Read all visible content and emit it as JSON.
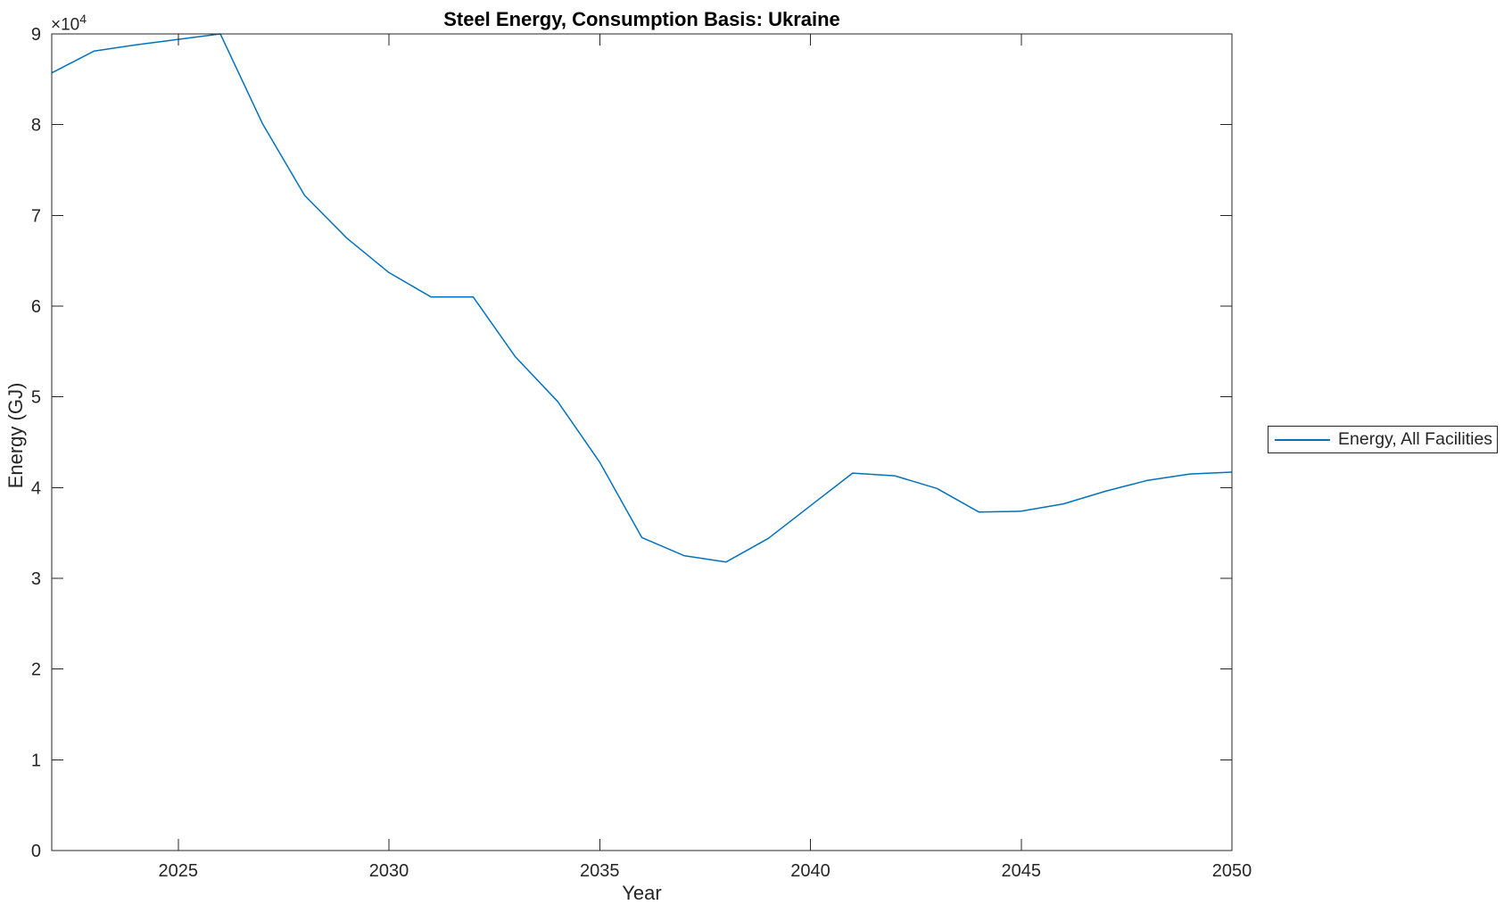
{
  "chart_data": {
    "type": "line",
    "title": "Steel Energy, Consumption Basis: Ukraine",
    "xlabel": "Year",
    "ylabel": "Energy (GJ)",
    "y_offset_base": "×10",
    "y_offset_exp": "4",
    "x": [
      2022,
      2023,
      2024,
      2025,
      2026,
      2027,
      2028,
      2029,
      2030,
      2031,
      2032,
      2033,
      2034,
      2035,
      2036,
      2037,
      2038,
      2039,
      2040,
      2041,
      2042,
      2043,
      2044,
      2045,
      2046,
      2047,
      2048,
      2049,
      2050
    ],
    "series": [
      {
        "name": "Energy, All Facilities",
        "color": "#0072BD",
        "values": [
          85700,
          88100,
          88800,
          89400,
          90000,
          80100,
          72200,
          67500,
          63700,
          61000,
          61000,
          54400,
          49500,
          42800,
          34500,
          32500,
          31800,
          34400,
          38000,
          41600,
          41300,
          39900,
          37300,
          37400,
          38200,
          39600,
          40800,
          41500,
          41700
        ]
      }
    ],
    "xlim": [
      2022,
      2050
    ],
    "ylim": [
      0,
      90000
    ],
    "x_ticks": [
      2025,
      2030,
      2035,
      2040,
      2045,
      2050
    ],
    "y_ticks": [
      0,
      10000,
      20000,
      30000,
      40000,
      50000,
      60000,
      70000,
      80000,
      90000
    ],
    "y_tick_labels": [
      "0",
      "1",
      "2",
      "3",
      "4",
      "5",
      "6",
      "7",
      "8",
      "9"
    ],
    "grid": false,
    "legend_position": "right-outside",
    "axis_color": "#262626",
    "background_color": "#ffffff"
  }
}
